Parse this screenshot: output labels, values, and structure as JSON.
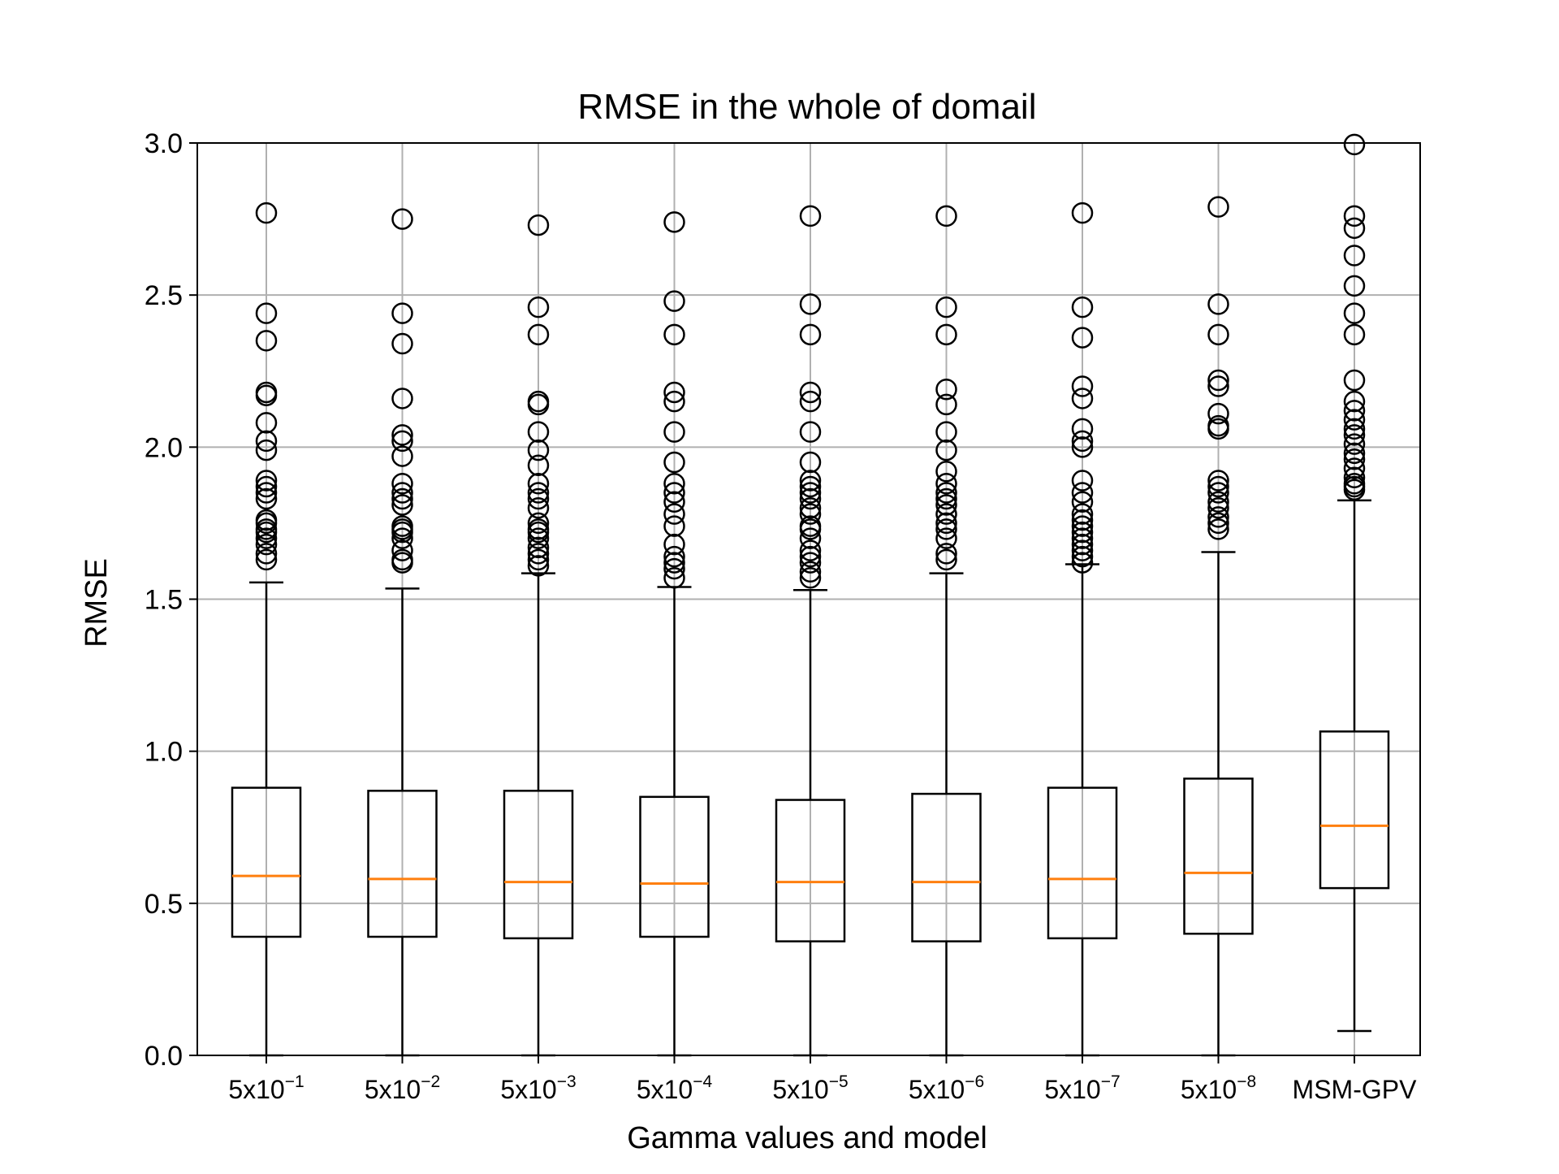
{
  "chart_data": {
    "type": "boxplot",
    "title": "RMSE in the whole of domail",
    "xlabel": "Gamma values and model",
    "ylabel": "RMSE",
    "ylim": [
      0.0,
      3.0
    ],
    "yticks": [
      0.0,
      0.5,
      1.0,
      1.5,
      2.0,
      2.5,
      3.0
    ],
    "ytick_labels": [
      "0.0",
      "0.5",
      "1.0",
      "1.5",
      "2.0",
      "2.5",
      "3.0"
    ],
    "grid": true,
    "colors": {
      "box": "#000000",
      "median": "#ff7f0e",
      "grid": "#b0b0b0"
    },
    "categories": [
      {
        "label": "5x10",
        "exp": "−1",
        "whislo": 0.0,
        "q1": 0.39,
        "med": 0.59,
        "q3": 0.88,
        "whishi": 1.555,
        "fliers": [
          1.63,
          1.65,
          1.68,
          1.7,
          1.72,
          1.73,
          1.75,
          1.76,
          1.83,
          1.85,
          1.87,
          1.89,
          1.99,
          2.02,
          2.08,
          2.17,
          2.18,
          2.35,
          2.44,
          2.77
        ]
      },
      {
        "label": "5x10",
        "exp": "−2",
        "whislo": 0.0,
        "q1": 0.39,
        "med": 0.58,
        "q3": 0.87,
        "whishi": 1.535,
        "fliers": [
          1.62,
          1.63,
          1.66,
          1.7,
          1.72,
          1.73,
          1.74,
          1.81,
          1.83,
          1.85,
          1.88,
          1.97,
          2.02,
          2.04,
          2.16,
          2.34,
          2.44,
          2.75
        ]
      },
      {
        "label": "5x10",
        "exp": "−3",
        "whislo": 0.0,
        "q1": 0.385,
        "med": 0.57,
        "q3": 0.87,
        "whishi": 1.585,
        "fliers": [
          1.61,
          1.63,
          1.65,
          1.67,
          1.7,
          1.72,
          1.73,
          1.75,
          1.8,
          1.83,
          1.85,
          1.88,
          1.94,
          1.99,
          2.05,
          2.14,
          2.15,
          2.37,
          2.46,
          2.73
        ]
      },
      {
        "label": "5x10",
        "exp": "−4",
        "whislo": 0.0,
        "q1": 0.39,
        "med": 0.565,
        "q3": 0.85,
        "whishi": 1.54,
        "fliers": [
          1.57,
          1.6,
          1.62,
          1.64,
          1.68,
          1.74,
          1.78,
          1.82,
          1.85,
          1.88,
          1.95,
          2.05,
          2.15,
          2.18,
          2.37,
          2.48,
          2.74
        ]
      },
      {
        "label": "5x10",
        "exp": "−5",
        "whislo": 0.0,
        "q1": 0.375,
        "med": 0.57,
        "q3": 0.84,
        "whishi": 1.53,
        "fliers": [
          1.57,
          1.59,
          1.62,
          1.64,
          1.66,
          1.7,
          1.73,
          1.74,
          1.78,
          1.8,
          1.83,
          1.85,
          1.87,
          1.89,
          1.95,
          2.05,
          2.15,
          2.18,
          2.37,
          2.47,
          2.76
        ]
      },
      {
        "label": "5x10",
        "exp": "−6",
        "whislo": 0.0,
        "q1": 0.375,
        "med": 0.57,
        "q3": 0.86,
        "whishi": 1.585,
        "fliers": [
          1.63,
          1.65,
          1.7,
          1.73,
          1.75,
          1.78,
          1.81,
          1.83,
          1.85,
          1.88,
          1.92,
          1.99,
          2.05,
          2.14,
          2.19,
          2.37,
          2.46,
          2.76
        ]
      },
      {
        "label": "5x10",
        "exp": "−7",
        "whislo": 0.0,
        "q1": 0.385,
        "med": 0.58,
        "q3": 0.88,
        "whishi": 1.615,
        "fliers": [
          1.62,
          1.64,
          1.66,
          1.68,
          1.7,
          1.72,
          1.74,
          1.76,
          1.78,
          1.82,
          1.85,
          1.89,
          2.0,
          2.02,
          2.06,
          2.16,
          2.2,
          2.36,
          2.46,
          2.77
        ]
      },
      {
        "label": "5x10",
        "exp": "−8",
        "whislo": 0.0,
        "q1": 0.4,
        "med": 0.6,
        "q3": 0.91,
        "whishi": 1.655,
        "fliers": [
          1.73,
          1.75,
          1.77,
          1.8,
          1.82,
          1.85,
          1.87,
          1.89,
          2.06,
          2.07,
          2.11,
          2.2,
          2.22,
          2.37,
          2.47,
          2.79
        ]
      },
      {
        "label": "MSM-GPV",
        "exp": "",
        "whislo": 0.08,
        "q1": 0.55,
        "med": 0.755,
        "q3": 1.065,
        "whishi": 1.825,
        "fliers": [
          1.86,
          1.87,
          1.88,
          1.9,
          1.93,
          1.96,
          1.98,
          2.01,
          2.04,
          2.06,
          2.09,
          2.12,
          2.15,
          2.22,
          2.37,
          2.44,
          2.53,
          2.63,
          2.72,
          2.76,
          2.995
        ]
      }
    ]
  }
}
